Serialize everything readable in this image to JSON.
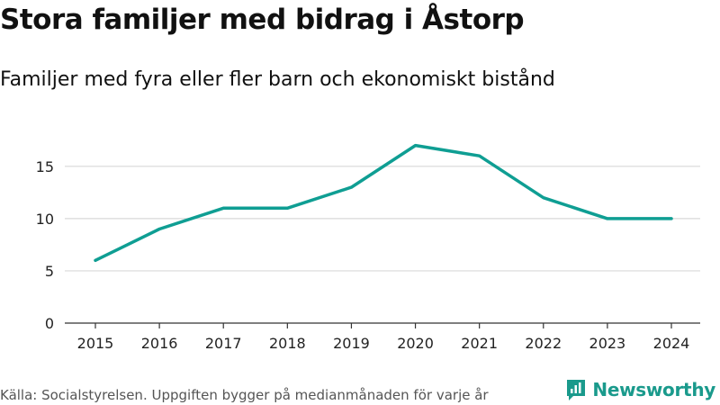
{
  "header": {
    "title": "Stora familjer med bidrag i Åstorp",
    "subtitle": "Familjer med fyra eller fler barn och ekonomiskt bistånd"
  },
  "footer": {
    "source": "Källa: Socialstyrelsen. Uppgiften bygger på medianmånaden för varje år",
    "brand": "Newsworthy"
  },
  "colors": {
    "line": "#0f9e93",
    "grid": "#d9d9d9",
    "axis": "#333333",
    "brand": "#1a9a8c"
  },
  "chart_data": {
    "type": "line",
    "title": "Stora familjer med bidrag i Åstorp",
    "subtitle": "Familjer med fyra eller fler barn och ekonomiskt bistånd",
    "xlabel": "",
    "ylabel": "",
    "categories": [
      "2015",
      "2016",
      "2017",
      "2018",
      "2019",
      "2020",
      "2021",
      "2022",
      "2023",
      "2024"
    ],
    "series": [
      {
        "name": "Familjer med fyra eller fler barn och ekonomiskt bistånd",
        "values": [
          6,
          9,
          11,
          11,
          13,
          17,
          16,
          12,
          10,
          10
        ]
      }
    ],
    "yticks": [
      0,
      5,
      10,
      15
    ],
    "ylim": [
      0,
      18
    ],
    "grid": true,
    "legend": "none"
  }
}
